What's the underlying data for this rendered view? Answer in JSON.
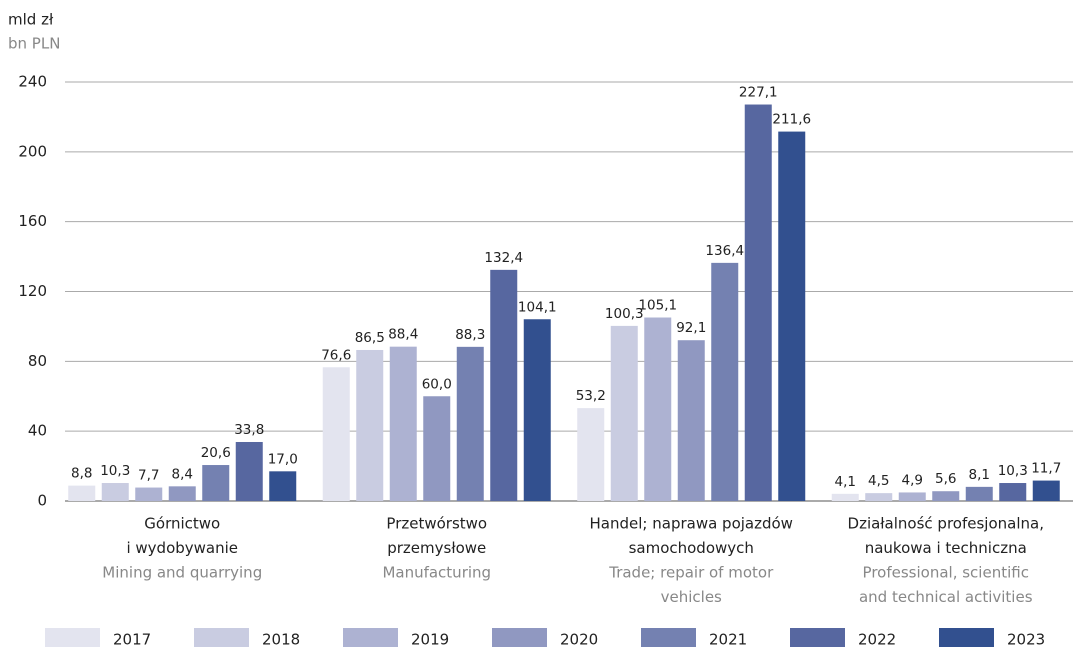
{
  "chart_data": {
    "type": "bar",
    "y_label": "mld zł",
    "y_label_en": "bn PLN",
    "categories": [
      [
        "Górnictwo",
        "i wydobywanie"
      ],
      [
        "Przetwórstwo",
        "przemysłowe"
      ],
      [
        "Handel; naprawa pojazdów",
        "samochodowych"
      ],
      [
        "Działalność profesjonalna,",
        "naukowa i techniczna"
      ]
    ],
    "categories_en": [
      [
        "Mining and quarrying"
      ],
      [
        "Manufacturing"
      ],
      [
        "Trade; repair of motor",
        "vehicles"
      ],
      [
        "Professional, scientific",
        "and technical activities"
      ]
    ],
    "series": [
      {
        "name": "2017",
        "color": "#e3e4ef",
        "values": [
          8.8,
          76.6,
          53.2,
          4.1
        ],
        "value_labels": [
          "8,8",
          "76,6",
          "53,2",
          "4,1"
        ]
      },
      {
        "name": "2018",
        "color": "#c9cce1",
        "values": [
          10.3,
          86.5,
          100.3,
          4.5
        ],
        "value_labels": [
          "10,3",
          "86,5",
          "100,3",
          "4,5"
        ]
      },
      {
        "name": "2019",
        "color": "#adb2d2",
        "values": [
          7.7,
          88.4,
          105.1,
          4.9
        ],
        "value_labels": [
          "7,7",
          "88,4",
          "105,1",
          "4,9"
        ]
      },
      {
        "name": "2020",
        "color": "#9098c1",
        "values": [
          8.4,
          60.0,
          92.1,
          5.6
        ],
        "value_labels": [
          "8,4",
          "60,0",
          "92,1",
          "5,6"
        ]
      },
      {
        "name": "2021",
        "color": "#7481b1",
        "values": [
          20.6,
          88.3,
          136.4,
          8.1
        ],
        "value_labels": [
          "20,6",
          "88,3",
          "136,4",
          "8,1"
        ]
      },
      {
        "name": "2022",
        "color": "#5767a0",
        "values": [
          33.8,
          132.4,
          227.1,
          10.3
        ],
        "value_labels": [
          "33,8",
          "132,4",
          "227,1",
          "10,3"
        ]
      },
      {
        "name": "2023",
        "color": "#32508f",
        "values": [
          17.0,
          104.1,
          211.6,
          11.7
        ],
        "value_labels": [
          "17,0",
          "104,1",
          "211,6",
          "11,7"
        ]
      }
    ],
    "ylim": [
      0,
      240
    ],
    "yticks": [
      0,
      40,
      80,
      120,
      160,
      200,
      240
    ],
    "grid": true,
    "legend": "bottom"
  }
}
